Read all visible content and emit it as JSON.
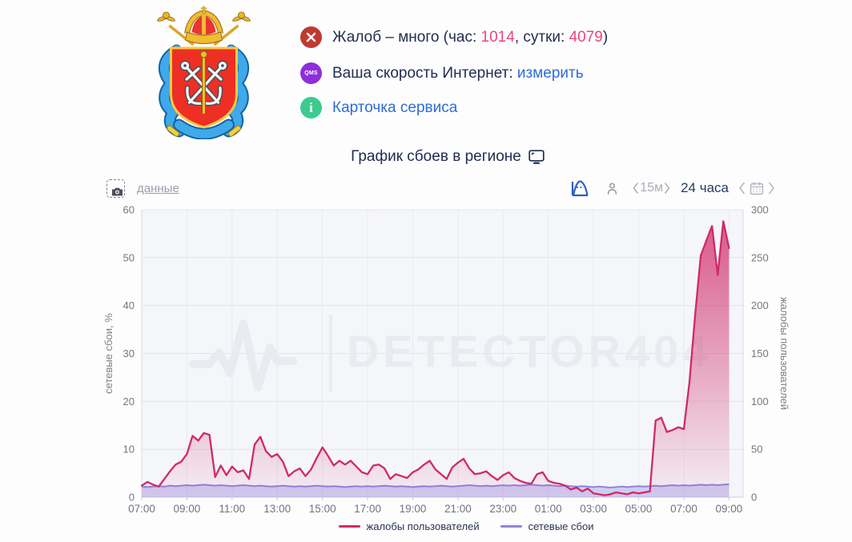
{
  "status": {
    "icons": {
      "x": "close",
      "qms": "QMS",
      "info": "i"
    },
    "complaints": {
      "prefix": "Жалоб – много (час: ",
      "hour": "1014",
      "infix": ", сутки: ",
      "day": "4079",
      "suffix": ")"
    },
    "speed": {
      "label": "Ваша скорость Интернет: ",
      "link": "измерить"
    },
    "card": {
      "link": "Карточка сервиса"
    }
  },
  "section": {
    "title": "График сбоев в регионе"
  },
  "toolbar": {
    "data_link": "данные",
    "interval": "15м",
    "range": "24 часа"
  },
  "chart_data": {
    "type": "area",
    "title": "График сбоев в регионе",
    "watermark": "DETECTOR404",
    "x_start": "07:00",
    "step_minutes": 15,
    "x_domain_quarters": 106.5,
    "x_tick_quarters": [
      0,
      8,
      16,
      24,
      32,
      40,
      48,
      56,
      64,
      72,
      80,
      88,
      96,
      104
    ],
    "x_tick_labels": [
      "07:00",
      "09:00",
      "11:00",
      "13:00",
      "15:00",
      "17:00",
      "19:00",
      "21:00",
      "23:00",
      "01:00",
      "03:00",
      "05:00",
      "07:00",
      "09:00"
    ],
    "left_axis": {
      "label": "сетевые сбои, %",
      "ticks": [
        0,
        10,
        20,
        30,
        40,
        50,
        60
      ],
      "max": 60
    },
    "right_axis": {
      "label": "жалобы пользователей",
      "ticks": [
        0,
        50,
        100,
        150,
        200,
        250,
        300
      ],
      "max": 300
    },
    "grid": true,
    "legend_position": "bottom",
    "series": [
      {
        "name": "жалобы пользователей",
        "axis": "right",
        "color": "#d02a68",
        "values": [
          12,
          16,
          13,
          11,
          19,
          27,
          34,
          37,
          45,
          64,
          59,
          67,
          65,
          21,
          33,
          23,
          32,
          26,
          28,
          19,
          55,
          63,
          48,
          42,
          45,
          37,
          22,
          27,
          30,
          22,
          29,
          41,
          52,
          43,
          33,
          38,
          34,
          38,
          32,
          26,
          24,
          33,
          34,
          30,
          19,
          24,
          22,
          20,
          26,
          29,
          34,
          38,
          29,
          24,
          19,
          31,
          36,
          40,
          30,
          24,
          25,
          27,
          22,
          18,
          23,
          26,
          20,
          17,
          15,
          14,
          24,
          26,
          17,
          15,
          14,
          12,
          8,
          10,
          6,
          9,
          4,
          3,
          2,
          3,
          5,
          4,
          3,
          5,
          4,
          5,
          6,
          80,
          83,
          68,
          70,
          73,
          71,
          120,
          190,
          252,
          268,
          283,
          232,
          288,
          260
        ]
      },
      {
        "name": "сетевые сбои",
        "axis": "left",
        "color": "#8d85de",
        "values": [
          2.2,
          2.1,
          2.2,
          2.3,
          2.2,
          2.4,
          2.3,
          2.4,
          2.5,
          2.4,
          2.5,
          2.6,
          2.5,
          2.4,
          2.5,
          2.4,
          2.3,
          2.4,
          2.5,
          2.4,
          2.3,
          2.4,
          2.3,
          2.2,
          2.3,
          2.4,
          2.3,
          2.2,
          2.3,
          2.2,
          2.3,
          2.4,
          2.3,
          2.2,
          2.3,
          2.2,
          2.1,
          2.2,
          2.3,
          2.2,
          2.3,
          2.2,
          2.3,
          2.4,
          2.3,
          2.2,
          2.3,
          2.2,
          2.1,
          2.2,
          2.3,
          2.2,
          2.3,
          2.4,
          2.3,
          2.2,
          2.3,
          2.4,
          2.5,
          2.4,
          2.3,
          2.4,
          2.3,
          2.4,
          2.5,
          2.4,
          2.5,
          2.4,
          2.5,
          2.6,
          2.5,
          2.4,
          2.5,
          2.4,
          2.3,
          2.4,
          2.3,
          2.2,
          2.3,
          2.2,
          2.1,
          2.2,
          2.1,
          2.0,
          2.1,
          2.2,
          2.1,
          2.2,
          2.3,
          2.2,
          2.3,
          2.4,
          2.3,
          2.4,
          2.5,
          2.4,
          2.5,
          2.4,
          2.5,
          2.6,
          2.5,
          2.6,
          2.5,
          2.6,
          2.7
        ]
      }
    ]
  },
  "colors": {
    "accent_pink": "#e8477e",
    "link_blue": "#2e6bd8",
    "navy_text": "#232e4f",
    "complaints_line": "#d02a68",
    "failures_line": "#8d85de",
    "plot_bg": "#f5f6fa"
  }
}
